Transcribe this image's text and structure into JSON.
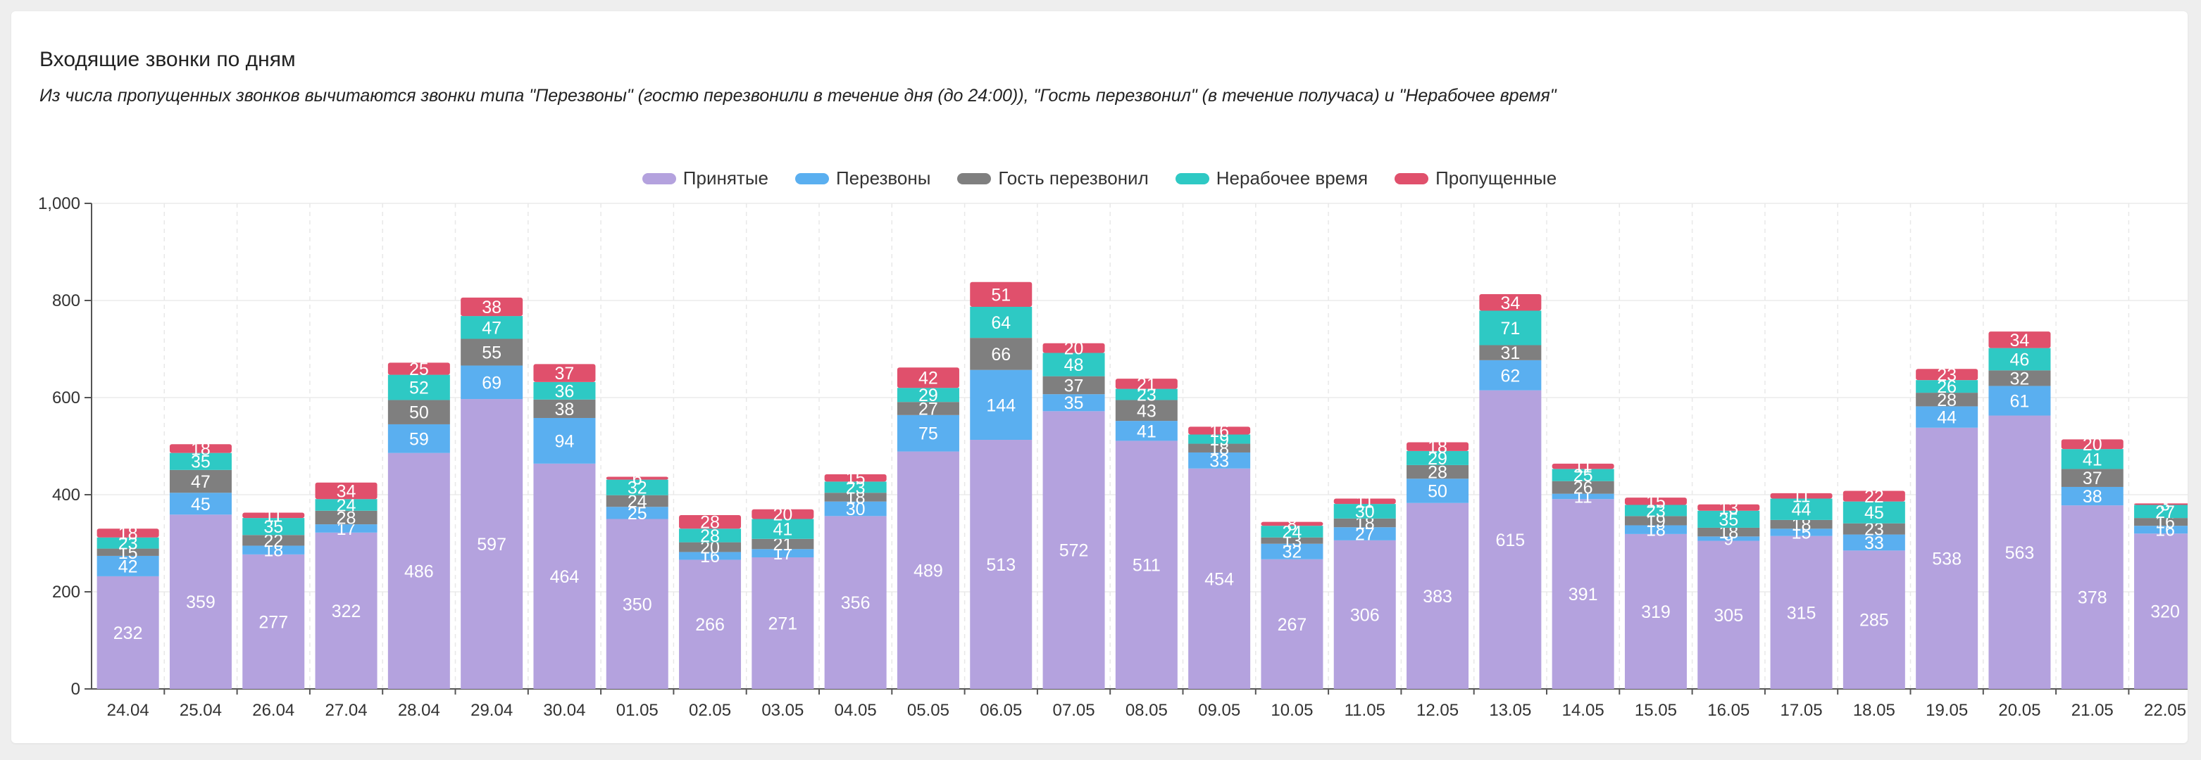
{
  "chart_data": {
    "type": "bar",
    "stacked": true,
    "title": "Входящие звонки по дням",
    "subtitle": "Из числа пропущенных звонков вычитаются звонки типа \"Перезвоны\" (гостю перезвонили в течение дня (до 24:00)), \"Гость перезвонил\" (в течение получаса) и \"Нерабочее время\"",
    "categories": [
      "24.04",
      "25.04",
      "26.04",
      "27.04",
      "28.04",
      "29.04",
      "30.04",
      "01.05",
      "02.05",
      "03.05",
      "04.05",
      "05.05",
      "06.05",
      "07.05",
      "08.05",
      "09.05",
      "10.05",
      "11.05",
      "12.05",
      "13.05",
      "14.05",
      "15.05",
      "16.05",
      "17.05",
      "18.05",
      "19.05",
      "20.05",
      "21.05",
      "22.05"
    ],
    "series": [
      {
        "name": "Принятые",
        "color": "#b4a2de",
        "values": [
          232,
          359,
          277,
          322,
          486,
          597,
          464,
          350,
          266,
          271,
          356,
          489,
          513,
          572,
          511,
          454,
          267,
          306,
          383,
          615,
          391,
          319,
          305,
          315,
          285,
          538,
          563,
          378,
          320
        ]
      },
      {
        "name": "Перезвоны",
        "color": "#5aaff0",
        "values": [
          42,
          45,
          18,
          17,
          59,
          69,
          94,
          25,
          16,
          17,
          30,
          75,
          144,
          35,
          41,
          33,
          32,
          27,
          50,
          62,
          11,
          18,
          9,
          15,
          33,
          44,
          61,
          38,
          16
        ]
      },
      {
        "name": "Гость перезвонил",
        "color": "#7f7f7f",
        "values": [
          15,
          47,
          22,
          28,
          50,
          55,
          38,
          24,
          20,
          21,
          18,
          27,
          66,
          37,
          43,
          18,
          13,
          18,
          28,
          31,
          26,
          19,
          18,
          18,
          23,
          28,
          32,
          37,
          16
        ]
      },
      {
        "name": "Нерабочее время",
        "color": "#2ec9c4",
        "values": [
          23,
          35,
          35,
          24,
          52,
          47,
          36,
          32,
          28,
          41,
          23,
          29,
          64,
          48,
          23,
          19,
          24,
          30,
          29,
          71,
          25,
          23,
          35,
          44,
          45,
          26,
          46,
          41,
          27
        ]
      },
      {
        "name": "Пропущенные",
        "color": "#e0506c",
        "values": [
          18,
          18,
          11,
          34,
          25,
          38,
          37,
          6,
          28,
          20,
          15,
          42,
          51,
          20,
          21,
          16,
          8,
          11,
          18,
          34,
          11,
          15,
          13,
          11,
          22,
          23,
          34,
          20,
          3
        ]
      }
    ],
    "ylim": [
      0,
      1000
    ],
    "yticks": [
      0,
      200,
      400,
      600,
      800,
      "1,000"
    ],
    "grid": true,
    "legend_position": "top-center"
  }
}
